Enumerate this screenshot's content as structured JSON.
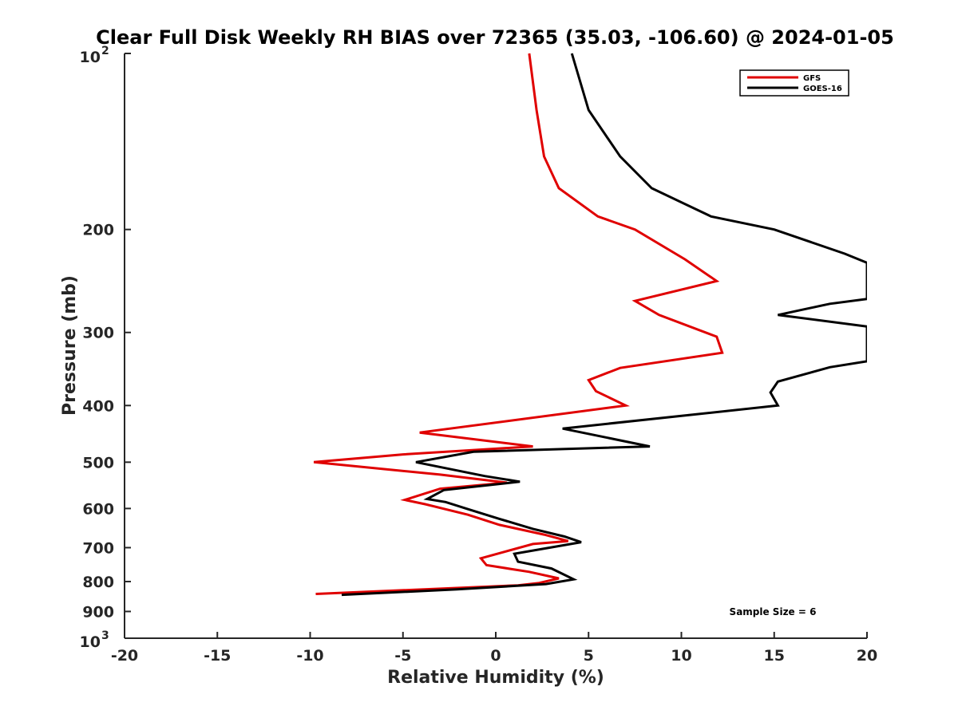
{
  "chart_data": {
    "type": "line",
    "title": "Clear Full Disk Weekly RH BIAS over 72365 (35.03, -106.60) @ 2024-01-05",
    "xlabel": "Relative Humidity (%)",
    "ylabel": "Pressure (mb)",
    "xlim": [
      -20,
      20
    ],
    "ylim": [
      100,
      1000
    ],
    "y_scale": "log",
    "y_reversed": true,
    "x_ticks": [
      "-20",
      "-15",
      "-10",
      "-5",
      "0",
      "5",
      "10",
      "15",
      "20"
    ],
    "y_ticks": [
      {
        "value": 100,
        "base": "10",
        "exp": "2"
      },
      {
        "value": 200,
        "label": "200"
      },
      {
        "value": 300,
        "label": "300"
      },
      {
        "value": 400,
        "label": "400"
      },
      {
        "value": 500,
        "label": "500"
      },
      {
        "value": 600,
        "label": "600"
      },
      {
        "value": 700,
        "label": "700"
      },
      {
        "value": 800,
        "label": "800"
      },
      {
        "value": 900,
        "label": "900"
      },
      {
        "value": 1000,
        "base": "10",
        "exp": "3"
      }
    ],
    "grid": false,
    "legend_position": "top-right",
    "annotation": "Sample Size = 6",
    "series": [
      {
        "name": "GFS",
        "color": "#e00000",
        "points": [
          [
            1.8,
            100
          ],
          [
            2.2,
            125
          ],
          [
            2.6,
            150
          ],
          [
            3.4,
            170
          ],
          [
            5.5,
            190
          ],
          [
            7.5,
            200
          ],
          [
            10.2,
            225
          ],
          [
            11.9,
            245
          ],
          [
            7.5,
            265
          ],
          [
            8.8,
            280
          ],
          [
            11.9,
            305
          ],
          [
            12.2,
            325
          ],
          [
            6.7,
            345
          ],
          [
            5.0,
            362
          ],
          [
            5.4,
            378
          ],
          [
            7.0,
            400
          ],
          [
            -4.1,
            445
          ],
          [
            2.0,
            470
          ],
          [
            -5.0,
            485
          ],
          [
            -9.8,
            500
          ],
          [
            -3.0,
            525
          ],
          [
            0.6,
            542
          ],
          [
            -3.0,
            555
          ],
          [
            -4.9,
            580
          ],
          [
            -3.8,
            590
          ],
          [
            -1.5,
            615
          ],
          [
            0.2,
            640
          ],
          [
            2.6,
            665
          ],
          [
            3.9,
            682
          ],
          [
            2.0,
            690
          ],
          [
            -0.8,
            730
          ],
          [
            -0.5,
            750
          ],
          [
            1.8,
            770
          ],
          [
            3.4,
            790
          ],
          [
            2.3,
            805
          ],
          [
            1.2,
            812
          ],
          [
            -9.7,
            840
          ]
        ]
      },
      {
        "name": "GOES-16",
        "color": "#000000",
        "points": [
          [
            4.1,
            100
          ],
          [
            5.0,
            125
          ],
          [
            6.7,
            150
          ],
          [
            8.4,
            170
          ],
          [
            11.6,
            190
          ],
          [
            15.0,
            200
          ],
          [
            18.8,
            220
          ],
          [
            20,
            228
          ],
          [
            20,
            263
          ],
          [
            18.0,
            268
          ],
          [
            15.2,
            280
          ],
          [
            20,
            293
          ],
          [
            20,
            336
          ],
          [
            18.0,
            344
          ],
          [
            15.2,
            364
          ],
          [
            14.8,
            380
          ],
          [
            15.2,
            400
          ],
          [
            3.6,
            438
          ],
          [
            8.3,
            470
          ],
          [
            -1.2,
            480
          ],
          [
            -4.3,
            500
          ],
          [
            -0.6,
            528
          ],
          [
            1.3,
            540
          ],
          [
            -2.8,
            558
          ],
          [
            -3.7,
            578
          ],
          [
            -2.7,
            585
          ],
          [
            -1.6,
            600
          ],
          [
            0.2,
            625
          ],
          [
            2.0,
            650
          ],
          [
            3.7,
            670
          ],
          [
            4.6,
            685
          ],
          [
            1.0,
            717
          ],
          [
            1.2,
            740
          ],
          [
            3.0,
            760
          ],
          [
            4.2,
            793
          ],
          [
            2.7,
            808
          ],
          [
            -2.1,
            825
          ],
          [
            -8.3,
            843
          ]
        ]
      }
    ]
  }
}
